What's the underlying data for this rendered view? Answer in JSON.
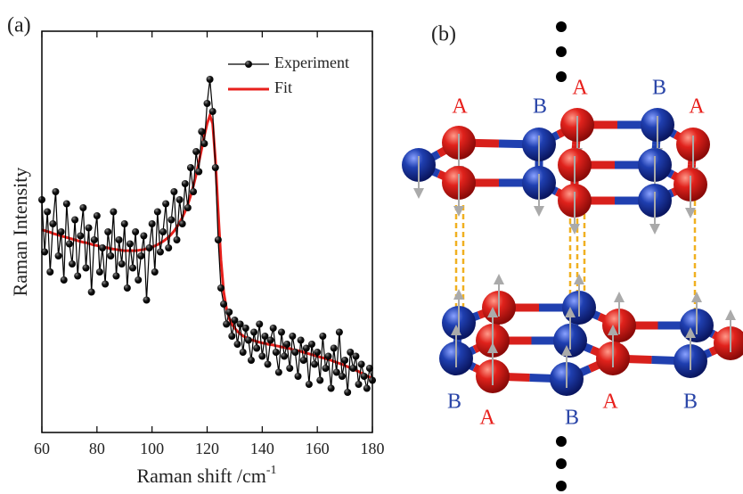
{
  "chart_data": {
    "type": "line",
    "panel_label": "(a)",
    "x_label": "Raman shift /cm",
    "x_label_sup": "-1",
    "y_label": "Raman Intensity",
    "xlim": [
      60,
      180
    ],
    "xticks": [
      60,
      80,
      100,
      120,
      140,
      160,
      180
    ],
    "ylim": [
      0,
      100
    ],
    "legend": "upper right",
    "x": [
      60,
      61,
      62,
      63,
      64,
      65,
      66,
      67,
      68,
      69,
      70,
      71,
      72,
      73,
      74,
      75,
      76,
      77,
      78,
      79,
      80,
      81,
      82,
      83,
      84,
      85,
      86,
      87,
      88,
      89,
      90,
      91,
      92,
      93,
      94,
      95,
      96,
      97,
      98,
      99,
      100,
      101,
      102,
      103,
      104,
      105,
      106,
      107,
      108,
      109,
      110,
      111,
      112,
      113,
      114,
      115,
      116,
      117,
      118,
      119,
      120,
      121,
      122,
      123,
      124,
      125,
      126,
      127,
      128,
      129,
      130,
      131,
      132,
      133,
      134,
      135,
      136,
      137,
      138,
      139,
      140,
      141,
      142,
      143,
      144,
      145,
      146,
      147,
      148,
      149,
      150,
      151,
      152,
      153,
      154,
      155,
      156,
      157,
      158,
      159,
      160,
      161,
      162,
      163,
      164,
      165,
      166,
      167,
      168,
      169,
      170,
      171,
      172,
      173,
      174,
      175,
      176,
      177,
      178,
      179,
      180
    ],
    "series": [
      {
        "name": "Experiment",
        "color": "#000000",
        "markers": true,
        "values": [
          58,
          45,
          55,
          40,
          52,
          60,
          44,
          50,
          38,
          57,
          47,
          42,
          53,
          39,
          49,
          56,
          41,
          51,
          35,
          48,
          54,
          40,
          46,
          37,
          50,
          44,
          55,
          39,
          48,
          42,
          52,
          36,
          47,
          41,
          50,
          38,
          44,
          49,
          33,
          46,
          52,
          40,
          55,
          45,
          50,
          57,
          46,
          53,
          60,
          48,
          58,
          52,
          62,
          56,
          66,
          60,
          70,
          65,
          75,
          72,
          82,
          88,
          80,
          66,
          48,
          36,
          32,
          27,
          30,
          24,
          28,
          22,
          27,
          20,
          26,
          23,
          18,
          25,
          21,
          27,
          19,
          24,
          17,
          23,
          26,
          20,
          15,
          25,
          19,
          22,
          16,
          24,
          20,
          14,
          23,
          18,
          21,
          12,
          22,
          17,
          20,
          13,
          24,
          16,
          19,
          11,
          21,
          15,
          25,
          14,
          18,
          10,
          20,
          16,
          19,
          12,
          17,
          14,
          11,
          16,
          13
        ]
      },
      {
        "name": "Fit",
        "color": "#e8201c",
        "markers": false,
        "values": [
          50.5,
          50.3,
          50.1,
          49.9,
          49.6,
          49.4,
          49.2,
          49.0,
          48.8,
          48.6,
          48.4,
          48.2,
          48.0,
          47.8,
          47.6,
          47.4,
          47.3,
          47.1,
          46.9,
          46.7,
          46.6,
          46.4,
          46.3,
          46.1,
          46.0,
          45.8,
          45.7,
          45.6,
          45.5,
          45.4,
          45.3,
          45.3,
          45.3,
          45.3,
          45.3,
          45.4,
          45.5,
          45.6,
          45.8,
          46.0,
          46.2,
          46.5,
          46.8,
          47.2,
          47.6,
          48.1,
          48.7,
          49.4,
          50.2,
          51.2,
          52.3,
          53.6,
          55.1,
          56.9,
          59.0,
          61.4,
          64.2,
          67.3,
          70.6,
          74.0,
          77.0,
          79.0,
          77.0,
          68.0,
          55.0,
          43.0,
          35.0,
          31.0,
          28.5,
          27.0,
          26.0,
          25.2,
          24.6,
          24.1,
          23.7,
          23.4,
          23.1,
          22.9,
          22.7,
          22.5,
          22.3,
          22.2,
          22.0,
          21.9,
          21.8,
          21.6,
          21.5,
          21.3,
          21.2,
          21.0,
          20.9,
          20.7,
          20.5,
          20.4,
          20.2,
          20.0,
          19.8,
          19.6,
          19.4,
          19.2,
          19.0,
          18.8,
          18.6,
          18.4,
          18.2,
          18.0,
          17.7,
          17.5,
          17.2,
          17.0,
          16.7,
          16.4,
          16.1,
          15.8,
          15.5,
          15.2,
          14.8,
          14.5,
          14.1,
          13.8,
          13.4
        ]
      }
    ]
  },
  "panel_b": {
    "panel_label": "(b)",
    "labels": [
      "A",
      "B",
      "A",
      "B",
      "A",
      "B",
      "A",
      "B",
      "A",
      "B"
    ]
  }
}
